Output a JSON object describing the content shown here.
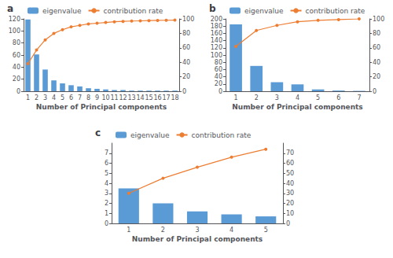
{
  "chart_data": [
    {
      "type": "bar",
      "title": "a",
      "xlabel": "Number of Principal components",
      "categories": [
        "1",
        "2",
        "3",
        "4",
        "5",
        "6",
        "7",
        "8",
        "9",
        "10",
        "11",
        "12",
        "13",
        "14",
        "15",
        "16",
        "17",
        "18"
      ],
      "series": [
        {
          "name": "eigenvalue",
          "type": "bar",
          "color": "#5b9bd5",
          "values": [
            119,
            61,
            36,
            18,
            13,
            10,
            8,
            5,
            4,
            3,
            2,
            2,
            1,
            1,
            1,
            1,
            1,
            1
          ]
        },
        {
          "name": "contribution rate",
          "type": "line",
          "color": "#ed7d31",
          "marker": "circle",
          "axis": "y2",
          "values": [
            38,
            57,
            71,
            80,
            85,
            89,
            91,
            93,
            94,
            95,
            96,
            96.5,
            97,
            97.3,
            97.6,
            97.9,
            98.1,
            98.3
          ]
        }
      ],
      "ylim": [
        0,
        120
      ],
      "yticks": [
        0,
        20,
        40,
        60,
        80,
        100,
        120
      ],
      "y2lim": [
        0,
        100
      ],
      "y2ticks": [
        0,
        20,
        40,
        60,
        80,
        100
      ],
      "legend": "upper left",
      "grid": false
    },
    {
      "type": "bar",
      "title": "b",
      "xlabel": "Number of Principal components",
      "categories": [
        "1",
        "2",
        "3",
        "4",
        "5",
        "6",
        "7"
      ],
      "series": [
        {
          "name": "eigenvalue",
          "type": "bar",
          "color": "#5b9bd5",
          "values": [
            185,
            70,
            25,
            19,
            5,
            2,
            1
          ]
        },
        {
          "name": "contribution rate",
          "type": "line",
          "color": "#ed7d31",
          "marker": "circle",
          "axis": "y2",
          "values": [
            62,
            84,
            91,
            96,
            98,
            99,
            100
          ]
        }
      ],
      "ylim": [
        0,
        200
      ],
      "yticks": [
        0,
        20,
        40,
        60,
        80,
        100,
        120,
        140,
        160,
        180,
        200
      ],
      "y2lim": [
        0,
        100
      ],
      "y2ticks": [
        0,
        20,
        40,
        60,
        80,
        100
      ],
      "legend": "upper left",
      "grid": false
    },
    {
      "type": "bar",
      "title": "c",
      "xlabel": "Number of Principal components",
      "categories": [
        "1",
        "2",
        "3",
        "4",
        "5"
      ],
      "series": [
        {
          "name": "eigenvalue",
          "type": "bar",
          "color": "#5b9bd5",
          "values": [
            3.5,
            2.0,
            1.2,
            0.9,
            0.7
          ]
        },
        {
          "name": "contribution rate",
          "type": "line",
          "color": "#ed7d31",
          "marker": "circle",
          "axis": "y2",
          "values": [
            30,
            45,
            56,
            66,
            74
          ]
        }
      ],
      "ylim": [
        0,
        8
      ],
      "yticks": [
        0,
        1,
        2,
        3,
        4,
        5,
        6,
        7
      ],
      "y2lim": [
        0,
        80
      ],
      "y2ticks": [
        0,
        10,
        20,
        30,
        40,
        50,
        60,
        70
      ],
      "legend": "upper left",
      "grid": false
    }
  ]
}
